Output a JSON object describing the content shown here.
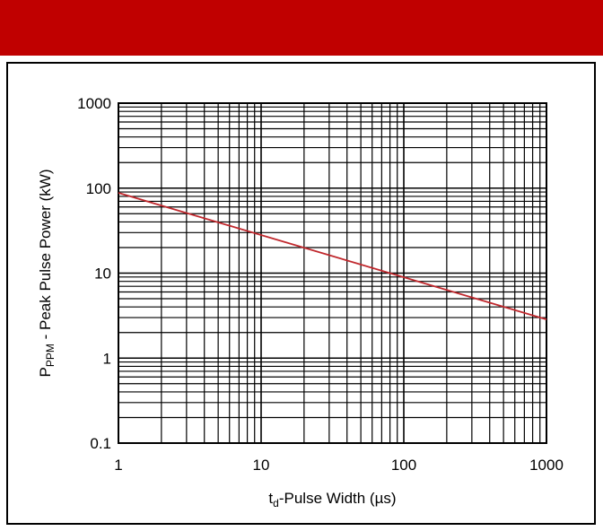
{
  "header": {
    "color": "#c00000"
  },
  "chart_data": {
    "type": "line",
    "xscale": "log",
    "yscale": "log",
    "xlim": [
      1,
      1000
    ],
    "ylim": [
      0.1,
      1000
    ],
    "grid": true,
    "xlabel_main": "t",
    "xlabel_sub": "d",
    "xlabel_rest": "-Pulse Width (µs)",
    "ylabel_main": "P",
    "ylabel_sub": "PPM",
    "ylabel_rest": " - Peak Pulse Power (kW)",
    "x_ticks": [
      {
        "value": 1,
        "label": "1"
      },
      {
        "value": 10,
        "label": "10"
      },
      {
        "value": 100,
        "label": "100"
      },
      {
        "value": 1000,
        "label": "1000"
      }
    ],
    "y_ticks": [
      {
        "value": 0.1,
        "label": "0.1"
      },
      {
        "value": 1,
        "label": "1"
      },
      {
        "value": 10,
        "label": "10"
      },
      {
        "value": 100,
        "label": "100"
      },
      {
        "value": 1000,
        "label": "1000"
      }
    ],
    "series": [
      {
        "color": "#c0282d",
        "x": [
          1,
          1000
        ],
        "y": [
          88,
          2.85
        ]
      }
    ]
  }
}
